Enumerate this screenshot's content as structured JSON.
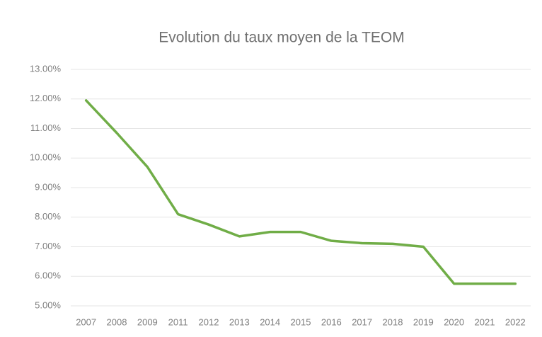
{
  "chart_data": {
    "type": "line",
    "title": "Evolution du taux moyen de la TEOM",
    "categories": [
      "2007",
      "2008",
      "2009",
      "2011",
      "2012",
      "2013",
      "2014",
      "2015",
      "2016",
      "2017",
      "2018",
      "2019",
      "2020",
      "2021",
      "2022"
    ],
    "series": [
      {
        "color": "#70ad47",
        "values": [
          11.95,
          10.85,
          9.7,
          8.1,
          7.75,
          7.35,
          7.5,
          7.5,
          7.2,
          7.12,
          7.1,
          7.0,
          5.75,
          5.75,
          5.75
        ]
      }
    ],
    "ylim": [
      5,
      13
    ],
    "yticks": [
      {
        "value": 5,
        "label": "5.00%"
      },
      {
        "value": 6,
        "label": "6.00%"
      },
      {
        "value": 7,
        "label": "7.00%"
      },
      {
        "value": 8,
        "label": "8.00%"
      },
      {
        "value": 9,
        "label": "9.00%"
      },
      {
        "value": 10,
        "label": "10.00%"
      },
      {
        "value": 11,
        "label": "11.00%"
      },
      {
        "value": 12,
        "label": "12.00%"
      },
      {
        "value": 13,
        "label": "13.00%"
      }
    ],
    "grid": true
  }
}
